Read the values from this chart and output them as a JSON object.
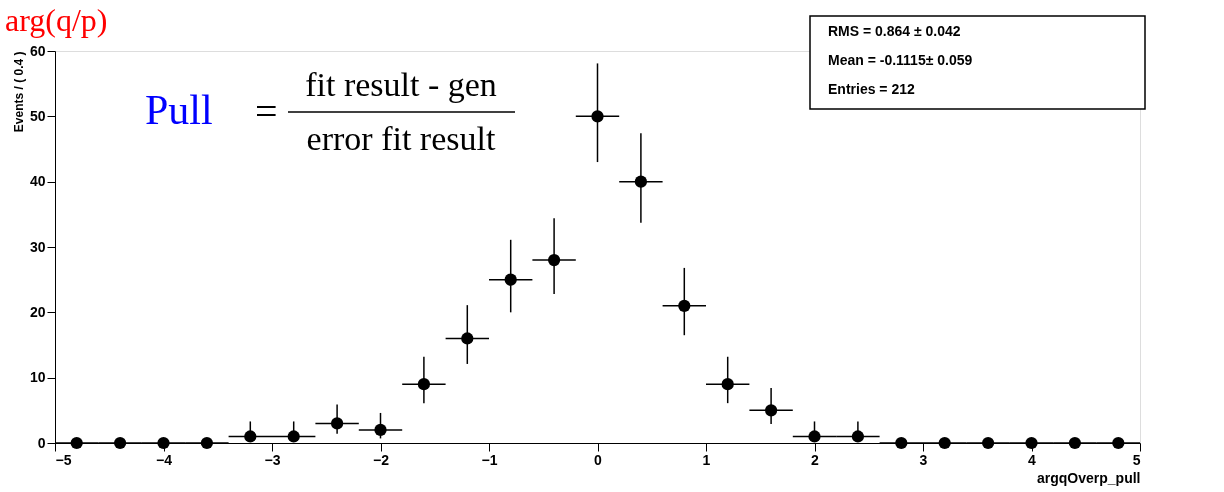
{
  "chart_data": {
    "type": "scatter",
    "title": "arg(q/p)",
    "xlabel": "argqOverp_pull",
    "ylabel": "Events / ( 0.4 )",
    "x": [
      -4.8,
      -4.4,
      -4.0,
      -3.6,
      -3.2,
      -2.8,
      -2.4,
      -2.0,
      -1.6,
      -1.2,
      -0.8,
      -0.4,
      0.0,
      0.4,
      0.8,
      1.2,
      1.6,
      2.0,
      2.4,
      2.8,
      3.2,
      3.6,
      4.0,
      4.4,
      4.8
    ],
    "series": [
      {
        "color": "#000000",
        "values": [
          0,
          0,
          0,
          0,
          1,
          1,
          3,
          2,
          9,
          16,
          25,
          28,
          50,
          40,
          21,
          9,
          5,
          1,
          1,
          0,
          0,
          0,
          0,
          0,
          0
        ],
        "errors": [
          null,
          null,
          null,
          null,
          [
            0.2,
            3.3
          ],
          [
            0.2,
            3.3
          ],
          [
            1.4,
            5.9
          ],
          [
            0.7,
            4.6
          ],
          [
            6.1,
            13.2
          ],
          [
            12.1,
            21.1
          ],
          [
            20.0,
            31.1
          ],
          [
            22.8,
            34.4
          ],
          [
            43.0,
            58.1
          ],
          [
            33.7,
            47.4
          ],
          [
            16.5,
            26.8
          ],
          [
            6.1,
            13.2
          ],
          [
            2.9,
            8.4
          ],
          [
            0.2,
            3.3
          ],
          [
            0.2,
            3.3
          ],
          null,
          null,
          null,
          null,
          null,
          null
        ],
        "xerrors": [
          0.2,
          0.2,
          0.2,
          0.2,
          0.2,
          0.2,
          0.2,
          0.2,
          0.2,
          0.2,
          0.2,
          0.2,
          0.2,
          0.2,
          0.2,
          0.2,
          0.2,
          0.2,
          0.2,
          0.2,
          0.2,
          0.2,
          0.2,
          0.2,
          0.2
        ]
      }
    ],
    "xlim": [
      -5,
      5
    ],
    "ylim": [
      0,
      60
    ],
    "xticks": [
      -5,
      -4,
      -3,
      -2,
      -1,
      0,
      1,
      2,
      3,
      4,
      5
    ],
    "yticks": [
      0,
      10,
      20,
      30,
      40,
      50,
      60
    ],
    "marker": "circle",
    "grid": false,
    "annotations": [
      "Pull",
      "=",
      "fit result - gen",
      "error fit result",
      "RMS =  0.864 ± 0.042",
      "Mean = -0.1115± 0.059",
      "Entries =  212"
    ]
  }
}
